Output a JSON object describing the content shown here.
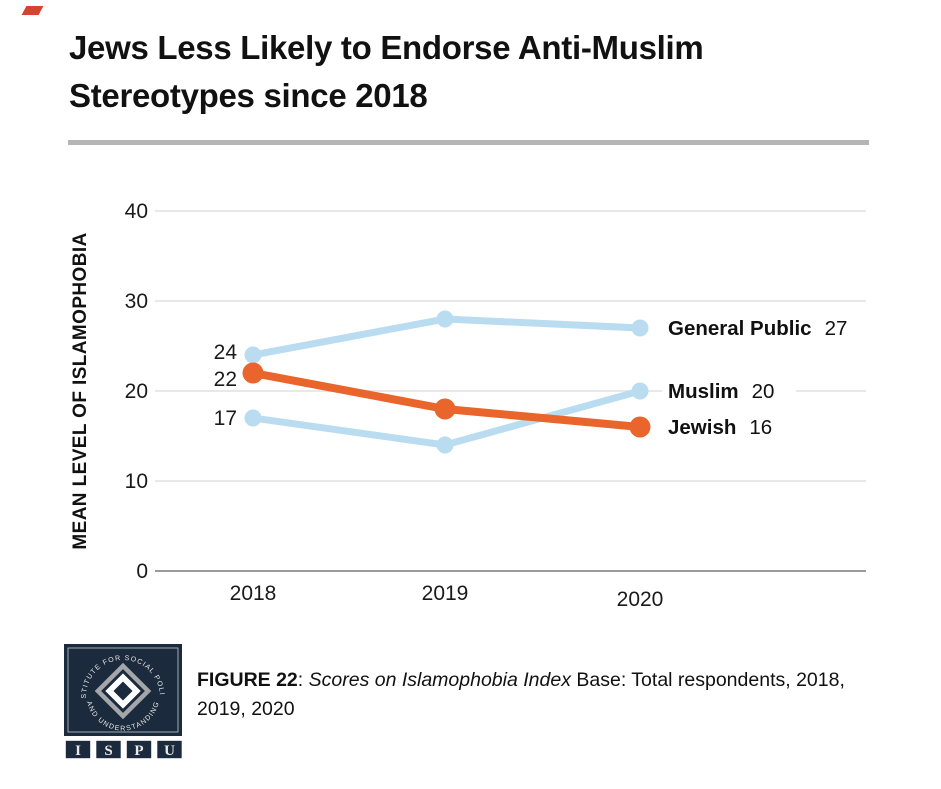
{
  "page": {
    "title_lines": [
      "Jews Less Likely to Endorse Anti-Muslim",
      "Stereotypes since 2018"
    ],
    "accent_color": "#d6432f",
    "divider_color": "#b4b5b7"
  },
  "chart_data": {
    "type": "line",
    "title": "Jews Less Likely to Endorse Anti-Muslim Stereotypes since 2018",
    "categories": [
      "2018",
      "2019",
      "2020"
    ],
    "xlabel": "",
    "ylabel": "MEAN LEVEL OF ISLAMOPHOBIA",
    "ylim": [
      0,
      40
    ],
    "yticks": [
      0,
      10,
      20,
      30,
      40
    ],
    "grid": "horizontal",
    "legend_position": "line-end-labels-right",
    "colors": {
      "light_blue": "#b9dcf0",
      "orange": "#e9652b",
      "gridline": "#e8e8e8",
      "axis_line": "#9b9b9b"
    },
    "series": [
      {
        "name": "General Public",
        "values": [
          24,
          28,
          27
        ],
        "color": "#b9dcf0",
        "emphasis": false
      },
      {
        "name": "Muslim",
        "values": [
          17,
          14,
          20
        ],
        "color": "#b9dcf0",
        "emphasis": false
      },
      {
        "name": "Jewish",
        "values": [
          22,
          18,
          16
        ],
        "color": "#e9652b",
        "emphasis": true
      }
    ],
    "first_point_labels_shown": true,
    "end_labels": [
      "General Public  27",
      "Muslim  20",
      "Jewish  16"
    ]
  },
  "footer": {
    "logo": {
      "arc_text_top": "INSTITUTE FOR SOCIAL POLICY",
      "arc_text_bottom": "AND UNDERSTANDING",
      "letters": [
        "I",
        "S",
        "P",
        "U"
      ],
      "navy": "#1b2a3c",
      "gray": "#a4a6a9"
    },
    "caption_parts": [
      {
        "text": "FIGURE 22",
        "style": "bold"
      },
      {
        "text": ": ",
        "style": "regular"
      },
      {
        "text": "Scores on Islamophobia Index",
        "style": "italic"
      },
      {
        "text": " Base: Total respondents, 2018, 2019, 2020",
        "style": "regular"
      }
    ]
  }
}
